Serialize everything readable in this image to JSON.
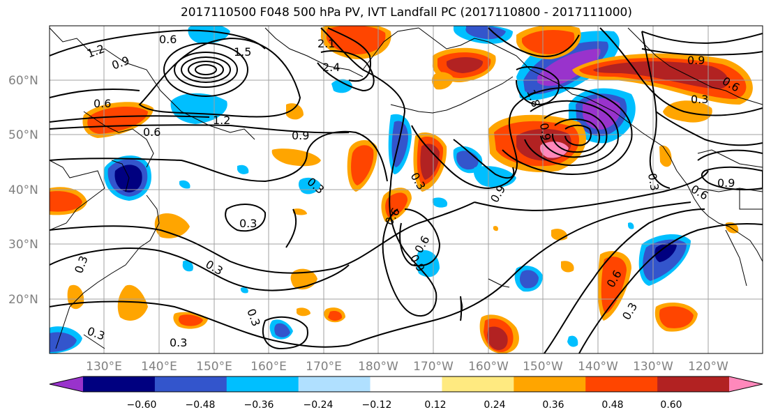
{
  "title": "2017110500 F048 500 hPa PV, IVT Landfall PC (2017110800 - 2017111000)",
  "lon_labels": [
    "130°E",
    "140°E",
    "150°E",
    "160°E",
    "170°E",
    "180°W",
    "170°W",
    "160°W",
    "150°W",
    "140°W",
    "130°W",
    "120°W"
  ],
  "lat_labels": [
    "60°N",
    "50°N",
    "40°N",
    "30°N",
    "20°N"
  ],
  "colorbar": {
    "colors": [
      "#9933cc",
      "#000080",
      "#3355cc",
      "#00bfff",
      "#b0e0ff",
      "#ffffff",
      "#ffea80",
      "#ffa500",
      "#ff4500",
      "#b22222",
      "#ff88bb"
    ],
    "tick_labels": [
      "−0.60",
      "−0.48",
      "−0.36",
      "−0.24",
      "−0.12",
      "0.12",
      "0.24",
      "0.36",
      "0.48",
      "0.60"
    ]
  },
  "contour_labels": [
    "0.6",
    "1.2",
    "0.9",
    "1.5",
    "2.1",
    "2.4",
    "0.6",
    "0.6",
    "1.2",
    "0.9",
    "0.3",
    "0.3",
    "0.6",
    "0.3",
    "0.9",
    "0.6",
    "0.3",
    "0.3",
    "0.9",
    "0.3",
    "0.3",
    "0.6",
    "0.3",
    "0.9",
    "0.3",
    "0.6",
    "0.9",
    "0.6",
    "0.3",
    "0.3",
    "1.8",
    "0.9"
  ]
}
